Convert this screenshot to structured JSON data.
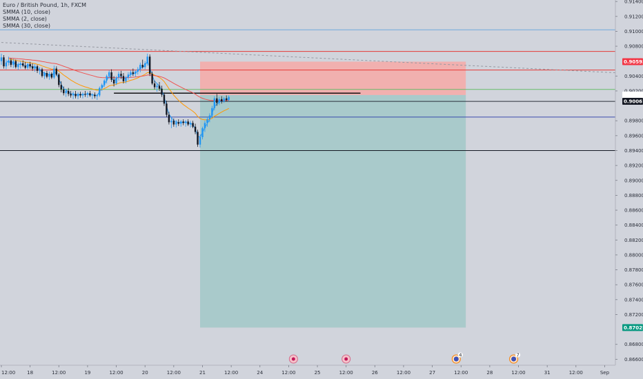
{
  "chart_data": {
    "type": "candlestick",
    "title": "Euro / British Pound, 1h, FXCM",
    "indicators": [
      {
        "label": "SMMA (10, close)",
        "color": "#ff9800"
      },
      {
        "label": "SMMA (2, close)",
        "color": "#2196f3"
      },
      {
        "label": "SMMA (30, close)",
        "color": "#ef5350"
      }
    ],
    "ylim": [
      0.8652,
      0.9142
    ],
    "y_ticks": [
      "0.91400",
      "0.91200",
      "0.91000",
      "0.90800",
      "0.90400",
      "0.90200",
      "0.89800",
      "0.89600",
      "0.89400",
      "0.89200",
      "0.89000",
      "0.88800",
      "0.88600",
      "0.88400",
      "0.88200",
      "0.88000",
      "0.87800",
      "0.87600",
      "0.87400",
      "0.87200",
      "0.86800",
      "0.86600"
    ],
    "x_ticks": [
      {
        "label": "12:00",
        "t": 0
      },
      {
        "label": "18",
        "t": 12
      },
      {
        "label": "12:00",
        "t": 24
      },
      {
        "label": "19",
        "t": 36
      },
      {
        "label": "12:00",
        "t": 48
      },
      {
        "label": "20",
        "t": 60
      },
      {
        "label": "12:00",
        "t": 72
      },
      {
        "label": "21",
        "t": 84
      },
      {
        "label": "12:00",
        "t": 96
      },
      {
        "label": "24",
        "t": 108
      },
      {
        "label": "12:00",
        "t": 120
      },
      {
        "label": "25",
        "t": 132
      },
      {
        "label": "12:00",
        "t": 144
      },
      {
        "label": "26",
        "t": 156
      },
      {
        "label": "12:00",
        "t": 168
      },
      {
        "label": "27",
        "t": 180
      },
      {
        "label": "12:00",
        "t": 192
      },
      {
        "label": "28",
        "t": 204
      },
      {
        "label": "12:00",
        "t": 216
      },
      {
        "label": "31",
        "t": 228
      },
      {
        "label": "12:00",
        "t": 240
      },
      {
        "label": "Sep",
        "t": 252
      }
    ],
    "price_tags": [
      {
        "label": "0.90593",
        "value": 0.90593,
        "color": "#f23645"
      },
      {
        "label": "0.90145",
        "value": 0.90145,
        "color": "#ffffff",
        "text_color": "#000000"
      },
      {
        "label": "0.90061",
        "value": 0.90061,
        "color": "#131722"
      },
      {
        "label": "0.87025",
        "value": 0.87025,
        "color": "#089981"
      }
    ],
    "position": {
      "entry": 0.90145,
      "stop": 0.90593,
      "target": 0.87025,
      "t_start": 83,
      "t_end": 194,
      "stop_color": "#f7a9a7",
      "target_color": "#a6c9c9"
    },
    "horizontal_lines": [
      {
        "value": 0.9102,
        "color": "#6fa8dc"
      },
      {
        "value": 0.9073,
        "color": "#e53935"
      },
      {
        "value": 0.9048,
        "color": "#e53935"
      },
      {
        "value": 0.9022,
        "color": "#66bb6a"
      },
      {
        "value": 0.9006,
        "color": "#2a2e39"
      },
      {
        "value": 0.8985,
        "color": "#3949ab"
      },
      {
        "value": 0.894,
        "color": "#131722"
      }
    ],
    "dashed_trend": {
      "t1": 0,
      "v1": 0.9085,
      "t2": 259,
      "v2": 0.9044,
      "color": "#9598a1"
    },
    "top_trend": {
      "t1": 160,
      "v1": 0.9152,
      "t2": 258,
      "v2": 0.9144,
      "color": "#000000"
    },
    "segment": {
      "t1": 47,
      "t2": 150,
      "value": 0.9017,
      "color": "#000000"
    },
    "events": [
      {
        "t": 122,
        "label": "",
        "kind": "earnings"
      },
      {
        "t": 144,
        "label": "",
        "kind": "earnings"
      },
      {
        "t": 190,
        "label": "4",
        "kind": "dividend"
      },
      {
        "t": 214,
        "label": "7",
        "kind": "dividend"
      }
    ],
    "candles": [
      [
        0.906,
        0.907,
        0.9055,
        0.9065
      ],
      [
        0.9065,
        0.9068,
        0.905,
        0.9053
      ],
      [
        0.9053,
        0.9062,
        0.9049,
        0.9058
      ],
      [
        0.9058,
        0.9066,
        0.9054,
        0.9061
      ],
      [
        0.9061,
        0.9064,
        0.9052,
        0.9055
      ],
      [
        0.9055,
        0.9063,
        0.9051,
        0.906
      ],
      [
        0.906,
        0.9062,
        0.905,
        0.9052
      ],
      [
        0.9052,
        0.9058,
        0.9048,
        0.9055
      ],
      [
        0.9055,
        0.906,
        0.905,
        0.9057
      ],
      [
        0.9057,
        0.9061,
        0.9052,
        0.9054
      ],
      [
        0.9054,
        0.9059,
        0.9049,
        0.9051
      ],
      [
        0.9051,
        0.9058,
        0.9048,
        0.9056
      ],
      [
        0.9056,
        0.9059,
        0.905,
        0.9053
      ],
      [
        0.9053,
        0.9057,
        0.9047,
        0.905
      ],
      [
        0.905,
        0.9056,
        0.9046,
        0.9053
      ],
      [
        0.9053,
        0.9055,
        0.9044,
        0.9047
      ],
      [
        0.9047,
        0.9052,
        0.9042,
        0.9049
      ],
      [
        0.9049,
        0.9051,
        0.9038,
        0.904
      ],
      [
        0.904,
        0.9046,
        0.9036,
        0.9044
      ],
      [
        0.9044,
        0.9047,
        0.9037,
        0.9039
      ],
      [
        0.9039,
        0.9046,
        0.9035,
        0.9043
      ],
      [
        0.9043,
        0.9045,
        0.9036,
        0.9038
      ],
      [
        0.9038,
        0.9054,
        0.9036,
        0.905
      ],
      [
        0.905,
        0.9053,
        0.904,
        0.9042
      ],
      [
        0.9042,
        0.9044,
        0.9025,
        0.9028
      ],
      [
        0.9028,
        0.9033,
        0.9018,
        0.9022
      ],
      [
        0.9022,
        0.9026,
        0.9014,
        0.9017
      ],
      [
        0.9017,
        0.9023,
        0.9012,
        0.902
      ],
      [
        0.902,
        0.9024,
        0.9013,
        0.9016
      ],
      [
        0.9016,
        0.902,
        0.9011,
        0.9014
      ],
      [
        0.9014,
        0.9019,
        0.9009,
        0.9016
      ],
      [
        0.9016,
        0.902,
        0.901,
        0.9013
      ],
      [
        0.9013,
        0.9018,
        0.9009,
        0.9016
      ],
      [
        0.9016,
        0.9019,
        0.9011,
        0.9014
      ],
      [
        0.9014,
        0.9018,
        0.901,
        0.9016
      ],
      [
        0.9016,
        0.902,
        0.9012,
        0.9015
      ],
      [
        0.9015,
        0.9019,
        0.9011,
        0.9017
      ],
      [
        0.9017,
        0.902,
        0.9012,
        0.9014
      ],
      [
        0.9014,
        0.9017,
        0.9009,
        0.9015
      ],
      [
        0.9015,
        0.9018,
        0.901,
        0.9013
      ],
      [
        0.9013,
        0.9016,
        0.9008,
        0.9014
      ],
      [
        0.9014,
        0.9026,
        0.9012,
        0.9024
      ],
      [
        0.9024,
        0.903,
        0.902,
        0.9028
      ],
      [
        0.9028,
        0.9036,
        0.9025,
        0.9034
      ],
      [
        0.9034,
        0.9042,
        0.903,
        0.904
      ],
      [
        0.904,
        0.9048,
        0.9036,
        0.9045
      ],
      [
        0.9045,
        0.9049,
        0.9032,
        0.9035
      ],
      [
        0.9035,
        0.904,
        0.9026,
        0.903
      ],
      [
        0.903,
        0.904,
        0.9028,
        0.9038
      ],
      [
        0.9038,
        0.9046,
        0.9034,
        0.9043
      ],
      [
        0.9043,
        0.9047,
        0.9036,
        0.904
      ],
      [
        0.904,
        0.9044,
        0.903,
        0.9033
      ],
      [
        0.9033,
        0.904,
        0.903,
        0.9038
      ],
      [
        0.9038,
        0.9045,
        0.9035,
        0.9042
      ],
      [
        0.9042,
        0.9048,
        0.9038,
        0.9045
      ],
      [
        0.9045,
        0.905,
        0.904,
        0.9043
      ],
      [
        0.9043,
        0.9048,
        0.9039,
        0.9046
      ],
      [
        0.9046,
        0.9052,
        0.9042,
        0.9049
      ],
      [
        0.9049,
        0.9058,
        0.9045,
        0.9055
      ],
      [
        0.9055,
        0.9062,
        0.905,
        0.9052
      ],
      [
        0.9052,
        0.906,
        0.9049,
        0.9057
      ],
      [
        0.9057,
        0.907,
        0.9054,
        0.9066
      ],
      [
        0.9066,
        0.9069,
        0.904,
        0.9043
      ],
      [
        0.9043,
        0.9046,
        0.9028,
        0.903
      ],
      [
        0.903,
        0.9034,
        0.9022,
        0.9025
      ],
      [
        0.9025,
        0.903,
        0.9019,
        0.9027
      ],
      [
        0.9027,
        0.9032,
        0.902,
        0.9023
      ],
      [
        0.9023,
        0.9027,
        0.9012,
        0.9015
      ],
      [
        0.9015,
        0.9018,
        0.9,
        0.9003
      ],
      [
        0.9003,
        0.9007,
        0.8985,
        0.8988
      ],
      [
        0.8988,
        0.8992,
        0.8975,
        0.8978
      ],
      [
        0.8978,
        0.8984,
        0.897,
        0.898
      ],
      [
        0.898,
        0.8983,
        0.8972,
        0.8975
      ],
      [
        0.8975,
        0.8981,
        0.8971,
        0.8978
      ],
      [
        0.8978,
        0.8982,
        0.8973,
        0.8976
      ],
      [
        0.8976,
        0.8981,
        0.8972,
        0.8979
      ],
      [
        0.8979,
        0.8982,
        0.8974,
        0.8977
      ],
      [
        0.8977,
        0.8981,
        0.8972,
        0.8979
      ],
      [
        0.8979,
        0.8982,
        0.8973,
        0.8975
      ],
      [
        0.8975,
        0.898,
        0.8971,
        0.8977
      ],
      [
        0.8977,
        0.898,
        0.897,
        0.8972
      ],
      [
        0.8972,
        0.8976,
        0.8962,
        0.8965
      ],
      [
        0.8965,
        0.8968,
        0.8945,
        0.8948
      ],
      [
        0.8948,
        0.8962,
        0.8944,
        0.8958
      ],
      [
        0.8958,
        0.8972,
        0.8955,
        0.897
      ],
      [
        0.897,
        0.898,
        0.8965,
        0.8977
      ],
      [
        0.8977,
        0.8985,
        0.8972,
        0.8982
      ],
      [
        0.8982,
        0.899,
        0.8978,
        0.8987
      ],
      [
        0.8987,
        0.9,
        0.8984,
        0.8997
      ],
      [
        0.8997,
        0.9013,
        0.8994,
        0.901
      ],
      [
        0.901,
        0.9016,
        0.9,
        0.9004
      ],
      [
        0.9004,
        0.9012,
        0.9001,
        0.9009
      ],
      [
        0.9009,
        0.9013,
        0.9003,
        0.9006
      ],
      [
        0.9006,
        0.9012,
        0.9004,
        0.901
      ],
      [
        0.901,
        0.9014,
        0.9006,
        0.9008
      ],
      [
        0.9008,
        0.9014,
        0.9006,
        0.9012
      ]
    ],
    "smma_lines": [
      {
        "color": "#2196f3",
        "width": 0.9,
        "mode": "smma",
        "period": 2
      },
      {
        "color": "#ff9800",
        "width": 1,
        "mode": "smma",
        "period": 10
      },
      {
        "color": "#ef5350",
        "width": 1,
        "mode": "smma",
        "period": 30
      }
    ]
  }
}
